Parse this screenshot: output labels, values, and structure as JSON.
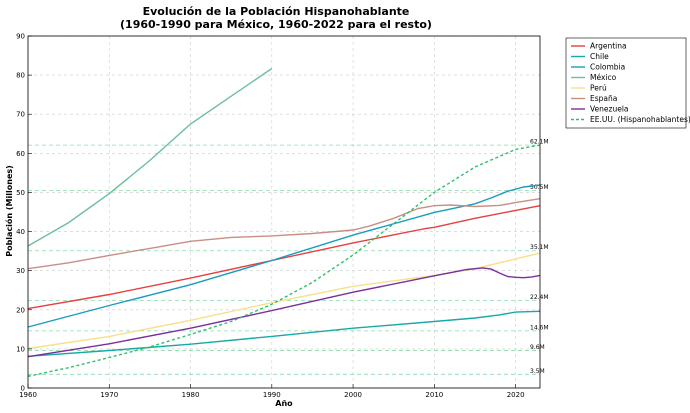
{
  "chart_data": {
    "type": "line",
    "title_line1": "Evolución de la Población Hispanohablante",
    "title_line2": "(1960-1990 para México, 1960-2022 para el resto)",
    "xlabel": "Año",
    "ylabel": "Población (Millones)",
    "xlim": [
      1960,
      2023
    ],
    "ylim": [
      0,
      90
    ],
    "x_ticks": [
      1960,
      1970,
      1980,
      1990,
      2000,
      2010,
      2020
    ],
    "y_ticks": [
      0,
      10,
      20,
      30,
      40,
      50,
      60,
      70,
      80,
      90
    ],
    "grid": true,
    "legend_position": "outside-right",
    "series": [
      {
        "name": "Argentina",
        "color": "#e8403f",
        "dash": false,
        "points": [
          [
            1960,
            20.3
          ],
          [
            1970,
            23.9
          ],
          [
            1980,
            28.1
          ],
          [
            1990,
            32.6
          ],
          [
            2000,
            37.1
          ],
          [
            2008,
            40.4
          ],
          [
            2009,
            40.8
          ],
          [
            2010,
            41.1
          ],
          [
            2015,
            43.4
          ],
          [
            2020,
            45.4
          ],
          [
            2023,
            46.6
          ]
        ]
      },
      {
        "name": "Chile",
        "color": "#17a9a6",
        "dash": false,
        "points": [
          [
            1960,
            8.1
          ],
          [
            1970,
            9.6
          ],
          [
            1980,
            11.2
          ],
          [
            1990,
            13.2
          ],
          [
            2000,
            15.3
          ],
          [
            2010,
            17.0
          ],
          [
            2015,
            17.9
          ],
          [
            2018,
            18.7
          ],
          [
            2020,
            19.4
          ],
          [
            2023,
            19.6
          ]
        ]
      },
      {
        "name": "Colombia",
        "color": "#1a9cbf",
        "dash": false,
        "points": [
          [
            1960,
            15.6
          ],
          [
            1970,
            21.1
          ],
          [
            1980,
            26.4
          ],
          [
            1990,
            32.6
          ],
          [
            2000,
            39.1
          ],
          [
            2010,
            44.9
          ],
          [
            2015,
            47.1
          ],
          [
            2017,
            48.6
          ],
          [
            2019,
            50.3
          ],
          [
            2021,
            51.4
          ],
          [
            2023,
            51.9
          ]
        ]
      },
      {
        "name": "México",
        "color": "#6dbf9a",
        "dash": false,
        "points": [
          [
            1960,
            36.3
          ],
          [
            1965,
            42.3
          ],
          [
            1970,
            49.7
          ],
          [
            1975,
            58.2
          ],
          [
            1980,
            67.5
          ],
          [
            1985,
            74.6
          ],
          [
            1990,
            81.7
          ]
        ]
      },
      {
        "name": "Perú",
        "color": "#f7e08a",
        "dash": false,
        "points": [
          [
            1960,
            10.1
          ],
          [
            1970,
            13.2
          ],
          [
            1980,
            17.3
          ],
          [
            1990,
            21.8
          ],
          [
            2000,
            26.0
          ],
          [
            2010,
            28.8
          ],
          [
            2015,
            30.5
          ],
          [
            2020,
            33.0
          ],
          [
            2023,
            34.5
          ]
        ]
      },
      {
        "name": "España",
        "color": "#c98e84",
        "dash": false,
        "points": [
          [
            1960,
            30.5
          ],
          [
            1965,
            32.0
          ],
          [
            1970,
            33.9
          ],
          [
            1975,
            35.7
          ],
          [
            1980,
            37.5
          ],
          [
            1985,
            38.5
          ],
          [
            1990,
            38.9
          ],
          [
            1995,
            39.5
          ],
          [
            2000,
            40.4
          ],
          [
            2002,
            41.4
          ],
          [
            2005,
            43.4
          ],
          [
            2008,
            45.9
          ],
          [
            2010,
            46.6
          ],
          [
            2012,
            46.8
          ],
          [
            2015,
            46.4
          ],
          [
            2018,
            46.7
          ],
          [
            2020,
            47.4
          ],
          [
            2023,
            48.4
          ]
        ]
      },
      {
        "name": "Venezuela",
        "color": "#7a2f9c",
        "dash": false,
        "points": [
          [
            1960,
            8.0
          ],
          [
            1970,
            11.3
          ],
          [
            1980,
            15.3
          ],
          [
            1990,
            19.8
          ],
          [
            2000,
            24.5
          ],
          [
            2010,
            28.7
          ],
          [
            2014,
            30.3
          ],
          [
            2016,
            30.7
          ],
          [
            2017,
            30.4
          ],
          [
            2018,
            29.4
          ],
          [
            2019,
            28.5
          ],
          [
            2020,
            28.3
          ],
          [
            2021,
            28.2
          ],
          [
            2022,
            28.4
          ],
          [
            2023,
            28.8
          ]
        ]
      },
      {
        "name": "EE.UU. (Hispanohablantes)",
        "color": "#2ebf6a",
        "dash": true,
        "points": [
          [
            1960,
            3.0
          ],
          [
            1965,
            5.2
          ],
          [
            1970,
            7.8
          ],
          [
            1975,
            10.5
          ],
          [
            1980,
            13.7
          ],
          [
            1985,
            17.0
          ],
          [
            1990,
            21.4
          ],
          [
            1995,
            27.0
          ],
          [
            2000,
            34.0
          ],
          [
            2005,
            42.0
          ],
          [
            2010,
            50.0
          ],
          [
            2015,
            56.5
          ],
          [
            2020,
            61.0
          ],
          [
            2023,
            62.1
          ]
        ]
      }
    ],
    "reference_lines": [
      {
        "value": 62.1,
        "label": "62.1M"
      },
      {
        "value": 50.5,
        "label": "50.5M"
      },
      {
        "value": 35.1,
        "label": "35.1M"
      },
      {
        "value": 22.4,
        "label": "22.4M"
      },
      {
        "value": 14.6,
        "label": "14.6M"
      },
      {
        "value": 9.6,
        "label": "9.6M"
      },
      {
        "value": 3.5,
        "label": "3.5M"
      }
    ],
    "reference_line_color": "#2ebf6a"
  }
}
